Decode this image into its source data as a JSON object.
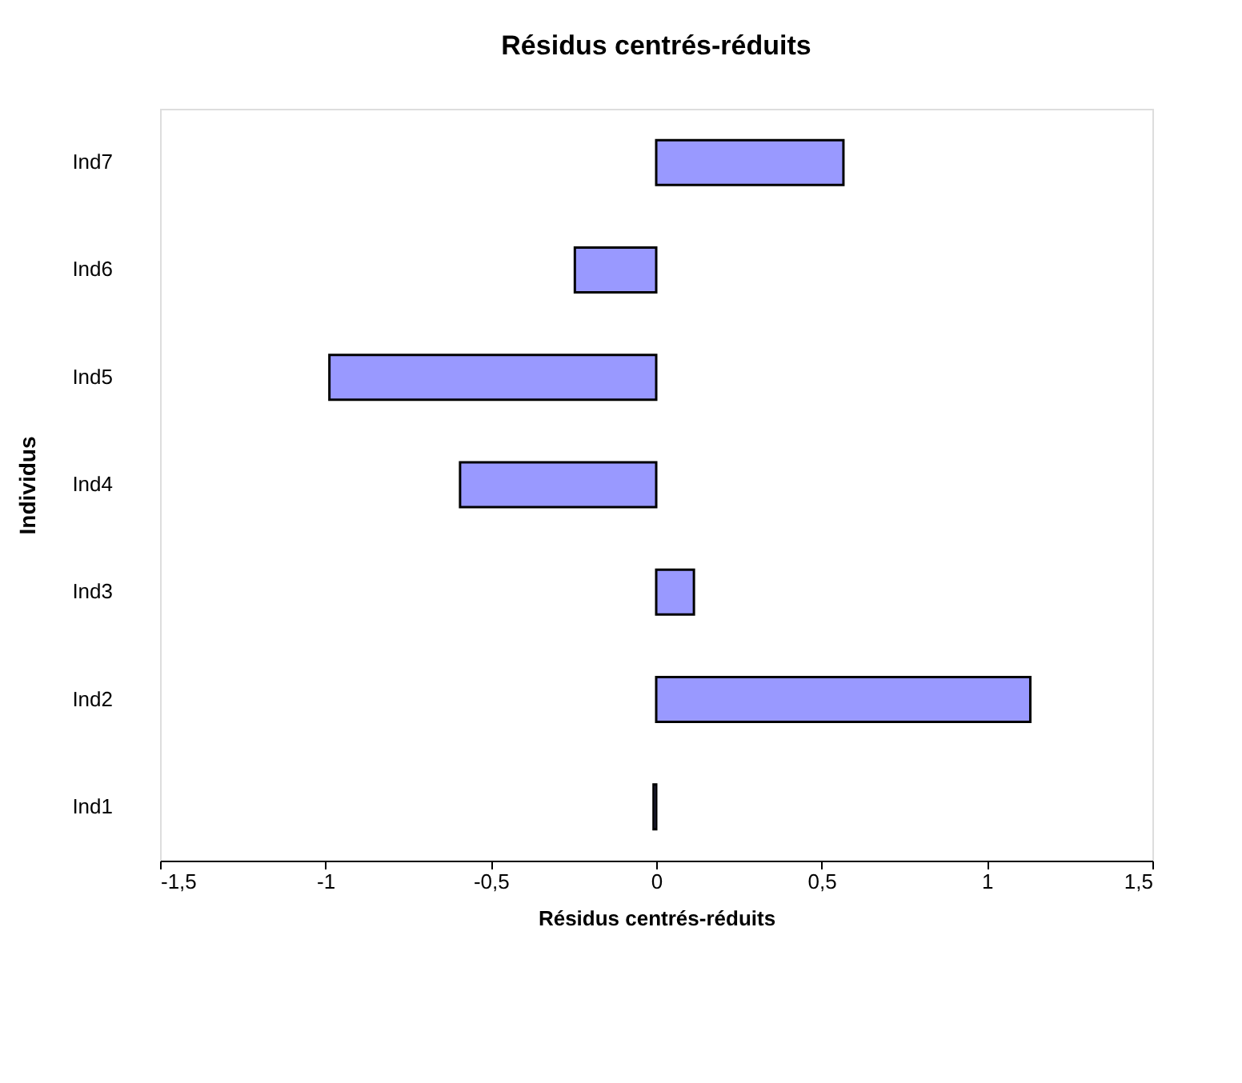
{
  "chart_data": {
    "type": "bar",
    "orientation": "horizontal",
    "title": "Résidus centrés-réduits",
    "xlabel": "Résidus centrés-réduits",
    "ylabel": "Individus",
    "categories": [
      "Ind7",
      "Ind6",
      "Ind5",
      "Ind4",
      "Ind3",
      "Ind2",
      "Ind1"
    ],
    "values": [
      0.566,
      -0.246,
      -0.988,
      -0.593,
      0.114,
      1.131,
      -0.008
    ],
    "color": "#9999ff",
    "xlim": [
      -1.5,
      1.5
    ],
    "xticks": [
      {
        "value": -1.5,
        "label": "-1,5"
      },
      -1,
      {
        "value": -0.5,
        "label": "-0,5"
      },
      0,
      {
        "value": 0.5,
        "label": "0,5"
      },
      1,
      {
        "value": 1.5,
        "label": "1,5"
      }
    ],
    "grid": false
  }
}
